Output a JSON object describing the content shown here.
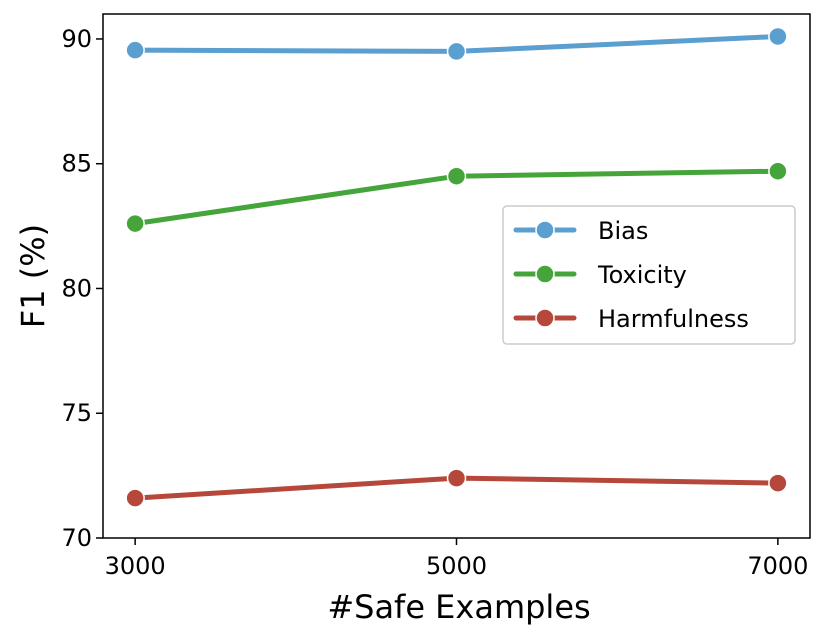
{
  "chart_data": {
    "type": "line",
    "xlabel": "#Safe Examples",
    "ylabel": "F1  (%)",
    "x": [
      3000,
      5000,
      7000
    ],
    "x_tick_labels": [
      "3000",
      "5000",
      "7000"
    ],
    "y_ticks": [
      70,
      75,
      80,
      85,
      90
    ],
    "y_tick_labels": [
      "70",
      "75",
      "80",
      "85",
      "90"
    ],
    "xlim": [
      2800,
      7200
    ],
    "ylim": [
      70,
      91
    ],
    "grid": false,
    "legend_position": "center-right",
    "series": [
      {
        "name": "Bias",
        "color": "#5a9fd0",
        "values": [
          89.55,
          89.5,
          90.1
        ]
      },
      {
        "name": "Toxicity",
        "color": "#45a53a",
        "values": [
          82.6,
          84.5,
          84.7
        ]
      },
      {
        "name": "Harmfulness",
        "color": "#b5483a",
        "values": [
          71.6,
          72.4,
          72.2
        ]
      }
    ]
  }
}
